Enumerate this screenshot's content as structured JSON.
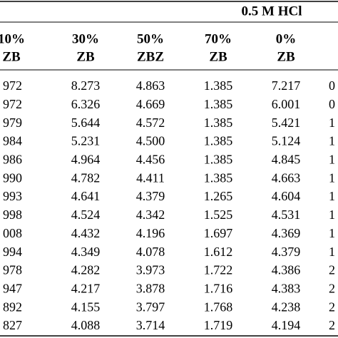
{
  "header": {
    "group": "0.5 M HCl"
  },
  "table": {
    "columns": [
      [
        "10%",
        "ZB"
      ],
      [
        "30%",
        "ZB"
      ],
      [
        "50%",
        "ZBZ"
      ],
      [
        "70%",
        "ZB"
      ],
      [
        "0%",
        "ZB"
      ]
    ],
    "rows": [
      [
        "972",
        "8.273",
        "4.863",
        "1.385",
        "7.217",
        "0"
      ],
      [
        "972",
        "6.326",
        "4.669",
        "1.385",
        "6.001",
        "0"
      ],
      [
        "979",
        "5.644",
        "4.572",
        "1.385",
        "5.421",
        "1"
      ],
      [
        "984",
        "5.231",
        "4.500",
        "1.385",
        "5.124",
        "1"
      ],
      [
        "986",
        "4.964",
        "4.456",
        "1.385",
        "4.845",
        "1"
      ],
      [
        "990",
        "4.782",
        "4.411",
        "1.385",
        "4.663",
        "1"
      ],
      [
        "993",
        "4.641",
        "4.379",
        "1.265",
        "4.604",
        "1"
      ],
      [
        "998",
        "4.524",
        "4.342",
        "1.525",
        "4.531",
        "1"
      ],
      [
        "008",
        "4.432",
        "4.196",
        "1.697",
        "4.369",
        "1"
      ],
      [
        "994",
        "4.349",
        "4.078",
        "1.612",
        "4.379",
        "1"
      ],
      [
        "978",
        "4.282",
        "3.973",
        "1.722",
        "4.386",
        "2"
      ],
      [
        "947",
        "4.217",
        "3.878",
        "1.716",
        "4.383",
        "2"
      ],
      [
        "892",
        "4.155",
        "3.797",
        "1.768",
        "4.238",
        "2"
      ],
      [
        "827",
        "4.088",
        "3.714",
        "1.719",
        "4.194",
        "2"
      ]
    ]
  }
}
